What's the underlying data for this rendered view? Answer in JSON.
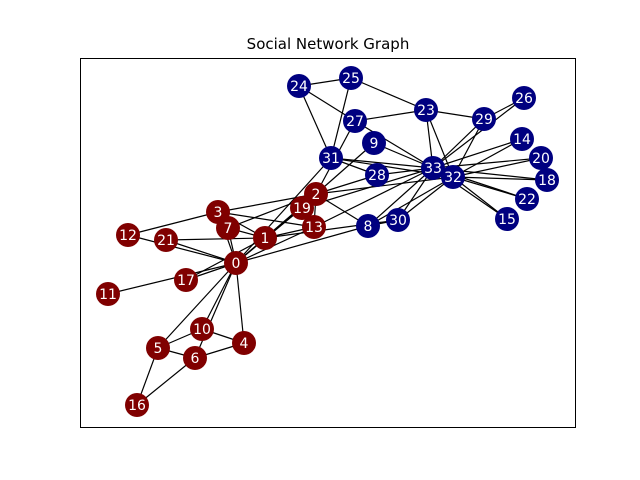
{
  "title": "Social Network Graph",
  "colors": {
    "group_a": "#800000",
    "group_b": "#000080",
    "edge": "#000000",
    "label": "#ffffff",
    "frame": "#000000",
    "background": "#ffffff"
  },
  "nodes": [
    {
      "id": "0",
      "label": "0",
      "group": "a"
    },
    {
      "id": "1",
      "label": "1",
      "group": "a"
    },
    {
      "id": "2",
      "label": "2",
      "group": "a"
    },
    {
      "id": "3",
      "label": "3",
      "group": "a"
    },
    {
      "id": "4",
      "label": "4",
      "group": "a"
    },
    {
      "id": "5",
      "label": "5",
      "group": "a"
    },
    {
      "id": "6",
      "label": "6",
      "group": "a"
    },
    {
      "id": "7",
      "label": "7",
      "group": "a"
    },
    {
      "id": "8",
      "label": "8",
      "group": "b"
    },
    {
      "id": "9",
      "label": "9",
      "group": "b"
    },
    {
      "id": "10",
      "label": "10",
      "group": "a"
    },
    {
      "id": "11",
      "label": "11",
      "group": "a"
    },
    {
      "id": "12",
      "label": "12",
      "group": "a"
    },
    {
      "id": "13",
      "label": "13",
      "group": "a"
    },
    {
      "id": "14",
      "label": "14",
      "group": "b"
    },
    {
      "id": "15",
      "label": "15",
      "group": "b"
    },
    {
      "id": "16",
      "label": "16",
      "group": "a"
    },
    {
      "id": "17",
      "label": "17",
      "group": "a"
    },
    {
      "id": "18",
      "label": "18",
      "group": "b"
    },
    {
      "id": "19",
      "label": "19",
      "group": "a"
    },
    {
      "id": "20",
      "label": "20",
      "group": "b"
    },
    {
      "id": "21",
      "label": "21",
      "group": "a"
    },
    {
      "id": "22",
      "label": "22",
      "group": "b"
    },
    {
      "id": "23",
      "label": "23",
      "group": "b"
    },
    {
      "id": "24",
      "label": "24",
      "group": "b"
    },
    {
      "id": "25",
      "label": "25",
      "group": "b"
    },
    {
      "id": "26",
      "label": "26",
      "group": "b"
    },
    {
      "id": "27",
      "label": "27",
      "group": "b"
    },
    {
      "id": "28",
      "label": "28",
      "group": "b"
    },
    {
      "id": "29",
      "label": "29",
      "group": "b"
    },
    {
      "id": "30",
      "label": "30",
      "group": "b"
    },
    {
      "id": "31",
      "label": "31",
      "group": "b"
    },
    {
      "id": "32",
      "label": "32",
      "group": "b"
    },
    {
      "id": "33",
      "label": "33",
      "group": "b"
    }
  ],
  "edges": [
    [
      "0",
      "1"
    ],
    [
      "0",
      "2"
    ],
    [
      "0",
      "3"
    ],
    [
      "0",
      "4"
    ],
    [
      "0",
      "5"
    ],
    [
      "0",
      "6"
    ],
    [
      "0",
      "7"
    ],
    [
      "0",
      "8"
    ],
    [
      "0",
      "10"
    ],
    [
      "0",
      "11"
    ],
    [
      "0",
      "12"
    ],
    [
      "0",
      "13"
    ],
    [
      "0",
      "17"
    ],
    [
      "0",
      "19"
    ],
    [
      "0",
      "21"
    ],
    [
      "0",
      "31"
    ],
    [
      "1",
      "2"
    ],
    [
      "1",
      "3"
    ],
    [
      "1",
      "7"
    ],
    [
      "1",
      "13"
    ],
    [
      "1",
      "17"
    ],
    [
      "1",
      "19"
    ],
    [
      "1",
      "21"
    ],
    [
      "1",
      "30"
    ],
    [
      "2",
      "3"
    ],
    [
      "2",
      "7"
    ],
    [
      "2",
      "8"
    ],
    [
      "2",
      "9"
    ],
    [
      "2",
      "13"
    ],
    [
      "2",
      "27"
    ],
    [
      "2",
      "28"
    ],
    [
      "2",
      "32"
    ],
    [
      "3",
      "7"
    ],
    [
      "3",
      "12"
    ],
    [
      "3",
      "13"
    ],
    [
      "4",
      "6"
    ],
    [
      "4",
      "10"
    ],
    [
      "5",
      "6"
    ],
    [
      "5",
      "10"
    ],
    [
      "5",
      "16"
    ],
    [
      "6",
      "16"
    ],
    [
      "8",
      "30"
    ],
    [
      "8",
      "32"
    ],
    [
      "8",
      "33"
    ],
    [
      "9",
      "33"
    ],
    [
      "13",
      "33"
    ],
    [
      "14",
      "32"
    ],
    [
      "14",
      "33"
    ],
    [
      "15",
      "32"
    ],
    [
      "15",
      "33"
    ],
    [
      "18",
      "32"
    ],
    [
      "18",
      "33"
    ],
    [
      "19",
      "33"
    ],
    [
      "20",
      "32"
    ],
    [
      "20",
      "33"
    ],
    [
      "22",
      "32"
    ],
    [
      "22",
      "33"
    ],
    [
      "23",
      "25"
    ],
    [
      "23",
      "27"
    ],
    [
      "23",
      "29"
    ],
    [
      "23",
      "32"
    ],
    [
      "23",
      "33"
    ],
    [
      "24",
      "25"
    ],
    [
      "24",
      "27"
    ],
    [
      "24",
      "31"
    ],
    [
      "25",
      "31"
    ],
    [
      "26",
      "29"
    ],
    [
      "26",
      "33"
    ],
    [
      "27",
      "33"
    ],
    [
      "28",
      "31"
    ],
    [
      "28",
      "33"
    ],
    [
      "29",
      "32"
    ],
    [
      "29",
      "33"
    ],
    [
      "30",
      "32"
    ],
    [
      "30",
      "33"
    ],
    [
      "31",
      "32"
    ],
    [
      "31",
      "33"
    ],
    [
      "32",
      "33"
    ]
  ]
}
